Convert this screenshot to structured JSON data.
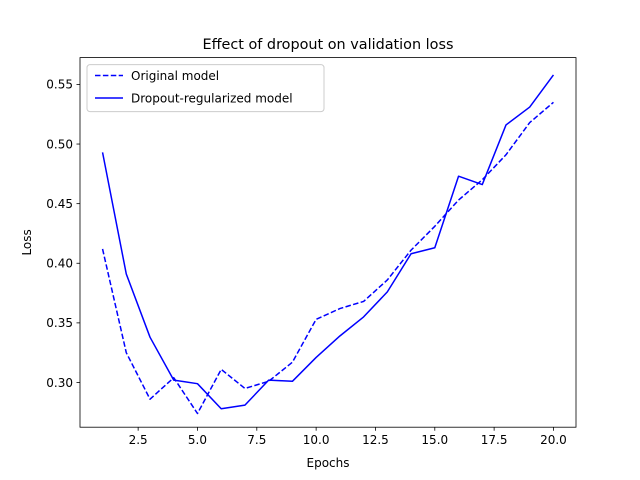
{
  "chart_data": {
    "type": "line",
    "title": "Effect of dropout on validation loss",
    "xlabel": "Epochs",
    "ylabel": "Loss",
    "xlim": [
      0.05,
      20.95
    ],
    "ylim": [
      0.2625,
      0.5725
    ],
    "xticks": [
      2.5,
      5.0,
      7.5,
      10.0,
      12.5,
      15.0,
      17.5,
      20.0
    ],
    "xtick_labels": [
      "2.5",
      "5.0",
      "7.5",
      "10.0",
      "12.5",
      "15.0",
      "17.5",
      "20.0"
    ],
    "yticks": [
      0.3,
      0.35,
      0.4,
      0.45,
      0.5,
      0.55
    ],
    "ytick_labels": [
      "0.30",
      "0.35",
      "0.40",
      "0.45",
      "0.50",
      "0.55"
    ],
    "grid": false,
    "legend_position": "top-left",
    "x": [
      1,
      2,
      3,
      4,
      5,
      6,
      7,
      8,
      9,
      10,
      11,
      12,
      13,
      14,
      15,
      16,
      17,
      18,
      19,
      20
    ],
    "series": [
      {
        "name": "Original model",
        "style": "dashed",
        "color": "#0000ff",
        "values": [
          0.412,
          0.325,
          0.286,
          0.304,
          0.274,
          0.311,
          0.295,
          0.301,
          0.317,
          0.353,
          0.362,
          0.368,
          0.386,
          0.411,
          0.431,
          0.453,
          0.47,
          0.491,
          0.518,
          0.535
        ]
      },
      {
        "name": "Dropout-regularized model",
        "style": "solid",
        "color": "#0000ff",
        "values": [
          0.493,
          0.391,
          0.338,
          0.302,
          0.299,
          0.278,
          0.281,
          0.302,
          0.301,
          0.321,
          0.339,
          0.355,
          0.376,
          0.408,
          0.413,
          0.473,
          0.466,
          0.516,
          0.531,
          0.558
        ]
      }
    ]
  }
}
